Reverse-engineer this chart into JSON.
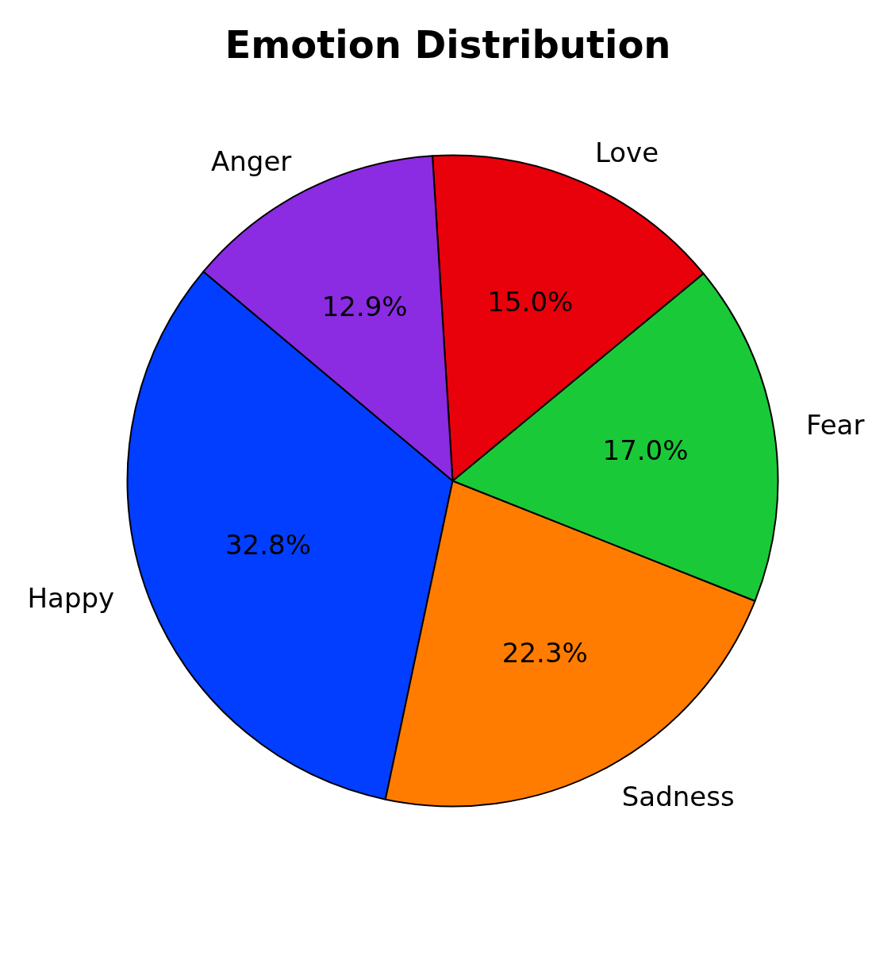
{
  "chart_data": {
    "type": "pie",
    "title": "Emotion Distribution",
    "categories": [
      "Happy",
      "Sadness",
      "Fear",
      "Love",
      "Anger"
    ],
    "values": [
      32.8,
      22.3,
      17.0,
      15.0,
      12.9
    ],
    "value_labels": [
      "32.8%",
      "22.3%",
      "17.0%",
      "15.0%",
      "12.9%"
    ],
    "colors": [
      "#023eff",
      "#ff7c00",
      "#1ac938",
      "#e8000b",
      "#8b2be2"
    ]
  }
}
